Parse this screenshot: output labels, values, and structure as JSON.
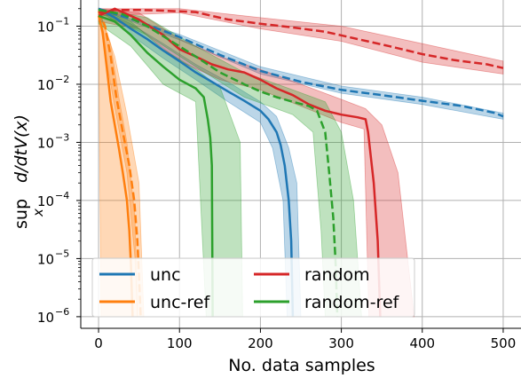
{
  "chart_data": {
    "type": "line",
    "xlabel": "No. data samples",
    "ylabel": "sup_x d/dtV(x)",
    "ylabel_parts": {
      "main": "sup",
      "sub": "x",
      "expr": "d/dtV(x)"
    },
    "xlim": [
      -22,
      522
    ],
    "ylim_log10": [
      -6.2,
      -0.55
    ],
    "yscale": "log",
    "grid": true,
    "legend": {
      "position": "bottom-left",
      "ncol": 2
    },
    "x_ticks": [
      {
        "value": 0,
        "label": "0"
      },
      {
        "value": 100,
        "label": "100"
      },
      {
        "value": 200,
        "label": "200"
      },
      {
        "value": 300,
        "label": "300"
      },
      {
        "value": 400,
        "label": "400"
      },
      {
        "value": 500,
        "label": "500"
      }
    ],
    "y_ticks": [
      {
        "exp": -1,
        "label": "10",
        "sup": "−1"
      },
      {
        "exp": -2,
        "label": "10",
        "sup": "−2"
      },
      {
        "exp": -3,
        "label": "10",
        "sup": "−3"
      },
      {
        "exp": -4,
        "label": "10",
        "sup": "−4"
      },
      {
        "exp": -5,
        "label": "10",
        "sup": "−5"
      },
      {
        "exp": -6,
        "label": "10",
        "sup": "−6"
      }
    ],
    "series": [
      {
        "name": "unc",
        "color": "#1f77b4",
        "solid": [
          [
            0,
            0.2
          ],
          [
            20,
            0.14
          ],
          [
            40,
            0.09
          ],
          [
            60,
            0.06
          ],
          [
            80,
            0.038
          ],
          [
            100,
            0.025
          ],
          [
            120,
            0.016
          ],
          [
            140,
            0.011
          ],
          [
            160,
            0.0075
          ],
          [
            180,
            0.0052
          ],
          [
            200,
            0.0035
          ],
          [
            210,
            0.0025
          ],
          [
            220,
            0.0015
          ],
          [
            225,
            0.0009
          ],
          [
            230,
            0.0004
          ],
          [
            235,
            0.0001
          ],
          [
            238,
            2e-05
          ],
          [
            240,
            1e-06
          ]
        ],
        "solid_band_hi": [
          [
            0,
            0.2
          ],
          [
            40,
            0.11
          ],
          [
            80,
            0.05
          ],
          [
            120,
            0.022
          ],
          [
            160,
            0.011
          ],
          [
            200,
            0.005
          ],
          [
            220,
            0.0028
          ],
          [
            235,
            0.0008
          ],
          [
            245,
            0.0002
          ],
          [
            250,
            1e-06
          ]
        ],
        "solid_band_lo": [
          [
            0,
            0.2
          ],
          [
            40,
            0.07
          ],
          [
            80,
            0.028
          ],
          [
            120,
            0.012
          ],
          [
            160,
            0.005
          ],
          [
            200,
            0.0022
          ],
          [
            215,
            0.0008
          ],
          [
            228,
            0.0001
          ],
          [
            233,
            1e-06
          ]
        ],
        "dashed": [
          [
            0,
            0.2
          ],
          [
            50,
            0.12
          ],
          [
            100,
            0.065
          ],
          [
            150,
            0.032
          ],
          [
            200,
            0.017
          ],
          [
            250,
            0.011
          ],
          [
            300,
            0.008
          ],
          [
            350,
            0.0065
          ],
          [
            400,
            0.0052
          ],
          [
            450,
            0.0042
          ],
          [
            490,
            0.0032
          ],
          [
            500,
            0.0028
          ]
        ],
        "dashed_band_hi": [
          [
            0,
            0.2
          ],
          [
            100,
            0.072
          ],
          [
            200,
            0.02
          ],
          [
            300,
            0.0093
          ],
          [
            400,
            0.006
          ],
          [
            500,
            0.0032
          ]
        ],
        "dashed_band_lo": [
          [
            0,
            0.2
          ],
          [
            100,
            0.058
          ],
          [
            200,
            0.015
          ],
          [
            300,
            0.007
          ],
          [
            400,
            0.0045
          ],
          [
            500,
            0.0025
          ]
        ]
      },
      {
        "name": "unc-ref",
        "color": "#ff7f0e",
        "solid": [
          [
            0,
            0.15
          ],
          [
            5,
            0.08
          ],
          [
            10,
            0.02
          ],
          [
            15,
            0.005
          ],
          [
            20,
            0.002
          ],
          [
            25,
            0.0008
          ],
          [
            30,
            0.0003
          ],
          [
            35,
            0.0001
          ],
          [
            38,
            3e-05
          ],
          [
            40,
            8e-06
          ],
          [
            42,
            1e-06
          ]
        ],
        "solid_band_hi": [
          [
            0,
            0.2
          ],
          [
            15,
            0.05
          ],
          [
            25,
            0.006
          ],
          [
            35,
            0.001
          ],
          [
            45,
            5e-05
          ],
          [
            48,
            1e-06
          ]
        ],
        "solid_band_lo": [
          [
            0,
            0.1
          ],
          [
            3,
            1e-06
          ]
        ],
        "dashed": [
          [
            0,
            0.18
          ],
          [
            8,
            0.1
          ],
          [
            15,
            0.03
          ],
          [
            22,
            0.006
          ],
          [
            30,
            0.0015
          ],
          [
            38,
            0.0004
          ],
          [
            44,
            0.0001
          ],
          [
            48,
            2e-05
          ],
          [
            50,
            5e-06
          ],
          [
            52,
            1e-06
          ]
        ],
        "dashed_band_hi": [
          [
            0,
            0.2
          ],
          [
            20,
            0.03
          ],
          [
            35,
            0.003
          ],
          [
            50,
            0.0002
          ],
          [
            56,
            1e-06
          ]
        ],
        "dashed_band_lo": [
          [
            0,
            0.15
          ],
          [
            20,
            0.004
          ],
          [
            35,
            0.0003
          ],
          [
            45,
            1e-05
          ],
          [
            48,
            1e-06
          ]
        ]
      },
      {
        "name": "random",
        "color": "#d62728",
        "solid": [
          [
            0,
            0.15
          ],
          [
            20,
            0.2
          ],
          [
            50,
            0.13
          ],
          [
            80,
            0.07
          ],
          [
            100,
            0.04
          ],
          [
            120,
            0.03
          ],
          [
            140,
            0.022
          ],
          [
            160,
            0.018
          ],
          [
            180,
            0.016
          ],
          [
            200,
            0.012
          ],
          [
            220,
            0.0085
          ],
          [
            240,
            0.0065
          ],
          [
            260,
            0.0045
          ],
          [
            280,
            0.0035
          ],
          [
            300,
            0.003
          ],
          [
            320,
            0.0027
          ],
          [
            330,
            0.0025
          ],
          [
            333,
            0.0015
          ],
          [
            340,
            0.0002
          ],
          [
            345,
            2e-05
          ],
          [
            348,
            1e-06
          ]
        ],
        "solid_band_hi": [
          [
            0,
            0.2
          ],
          [
            50,
            0.17
          ],
          [
            100,
            0.06
          ],
          [
            150,
            0.03
          ],
          [
            200,
            0.018
          ],
          [
            250,
            0.01
          ],
          [
            300,
            0.0055
          ],
          [
            330,
            0.0038
          ],
          [
            350,
            0.002
          ],
          [
            370,
            0.0003
          ],
          [
            390,
            1e-06
          ]
        ],
        "solid_band_lo": [
          [
            0,
            0.12
          ],
          [
            50,
            0.09
          ],
          [
            100,
            0.025
          ],
          [
            150,
            0.012
          ],
          [
            200,
            0.008
          ],
          [
            250,
            0.0042
          ],
          [
            300,
            0.0022
          ],
          [
            328,
            0.0017
          ],
          [
            334,
            1e-06
          ]
        ],
        "dashed": [
          [
            0,
            0.17
          ],
          [
            20,
            0.19
          ],
          [
            50,
            0.19
          ],
          [
            80,
            0.185
          ],
          [
            100,
            0.18
          ],
          [
            120,
            0.175
          ],
          [
            140,
            0.15
          ],
          [
            160,
            0.13
          ],
          [
            180,
            0.12
          ],
          [
            200,
            0.11
          ],
          [
            240,
            0.095
          ],
          [
            280,
            0.08
          ],
          [
            320,
            0.06
          ],
          [
            360,
            0.045
          ],
          [
            400,
            0.033
          ],
          [
            440,
            0.026
          ],
          [
            480,
            0.022
          ],
          [
            500,
            0.019
          ]
        ],
        "dashed_band_hi": [
          [
            0,
            0.2
          ],
          [
            100,
            0.2
          ],
          [
            200,
            0.14
          ],
          [
            300,
            0.1
          ],
          [
            400,
            0.05
          ],
          [
            500,
            0.025
          ]
        ],
        "dashed_band_lo": [
          [
            0,
            0.15
          ],
          [
            100,
            0.17
          ],
          [
            200,
            0.09
          ],
          [
            300,
            0.055
          ],
          [
            400,
            0.024
          ],
          [
            500,
            0.015
          ]
        ]
      },
      {
        "name": "random-ref",
        "color": "#2ca02c",
        "solid": [
          [
            0,
            0.15
          ],
          [
            20,
            0.12
          ],
          [
            40,
            0.07
          ],
          [
            60,
            0.035
          ],
          [
            80,
            0.02
          ],
          [
            100,
            0.012
          ],
          [
            120,
            0.0085
          ],
          [
            130,
            0.006
          ],
          [
            135,
            0.0025
          ],
          [
            138,
            0.0012
          ],
          [
            140,
            0.0004
          ],
          [
            141,
            1e-06
          ]
        ],
        "solid_band_hi": [
          [
            0,
            0.2
          ],
          [
            40,
            0.12
          ],
          [
            80,
            0.04
          ],
          [
            120,
            0.018
          ],
          [
            150,
            0.009
          ],
          [
            175,
            0.001
          ],
          [
            178,
            1e-06
          ]
        ],
        "solid_band_lo": [
          [
            0,
            0.11
          ],
          [
            40,
            0.045
          ],
          [
            80,
            0.01
          ],
          [
            120,
            0.005
          ],
          [
            133,
            1e-06
          ]
        ],
        "dashed": [
          [
            0,
            0.19
          ],
          [
            30,
            0.16
          ],
          [
            60,
            0.1
          ],
          [
            90,
            0.055
          ],
          [
            120,
            0.03
          ],
          [
            150,
            0.016
          ],
          [
            180,
            0.01
          ],
          [
            200,
            0.0075
          ],
          [
            220,
            0.006
          ],
          [
            240,
            0.005
          ],
          [
            260,
            0.0042
          ],
          [
            270,
            0.0035
          ],
          [
            280,
            0.0015
          ],
          [
            285,
            0.0003
          ],
          [
            290,
            5e-05
          ],
          [
            293,
            8e-06
          ],
          [
            295,
            1e-06
          ]
        ],
        "dashed_band_hi": [
          [
            0,
            0.2
          ],
          [
            60,
            0.14
          ],
          [
            120,
            0.045
          ],
          [
            180,
            0.016
          ],
          [
            240,
            0.008
          ],
          [
            280,
            0.005
          ],
          [
            300,
            0.0015
          ],
          [
            315,
            0.0001
          ],
          [
            325,
            1e-06
          ]
        ],
        "dashed_band_lo": [
          [
            0,
            0.17
          ],
          [
            60,
            0.07
          ],
          [
            120,
            0.02
          ],
          [
            180,
            0.006
          ],
          [
            240,
            0.003
          ],
          [
            265,
            0.0015
          ],
          [
            275,
            3e-05
          ],
          [
            280,
            1e-06
          ]
        ]
      }
    ]
  }
}
